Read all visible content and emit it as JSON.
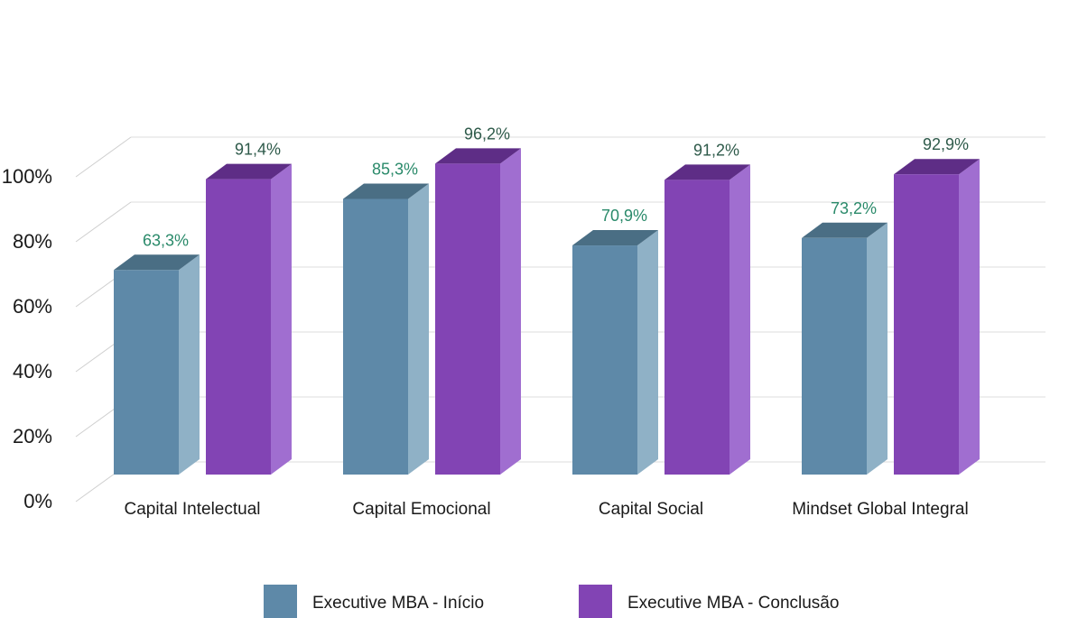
{
  "chart_data": {
    "type": "bar",
    "title": "",
    "xlabel": "",
    "ylabel": "",
    "ylim": [
      0,
      100
    ],
    "y_ticks": [
      "0%",
      "20%",
      "40%",
      "60%",
      "80%",
      "100%"
    ],
    "y_tick_values": [
      0,
      20,
      40,
      60,
      80,
      100
    ],
    "grid": true,
    "style": "3d-clustered-columns",
    "legend_position": "bottom",
    "categories": [
      "Capital Intelectual",
      "Capital Emocional",
      "Capital Social",
      "Mindset Global Integral"
    ],
    "series": [
      {
        "name": "Executive MBA - Início",
        "values": [
          63.3,
          85.3,
          70.9,
          73.2
        ],
        "labels": [
          "63,3%",
          "85,3%",
          "70,9%",
          "73,2%"
        ],
        "color": "#5e89a8",
        "side_color": "#8fb1c6",
        "top_color": "#4a6e84",
        "label_color": "#2a8a6a"
      },
      {
        "name": "Executive MBA - Conclusão",
        "values": [
          91.4,
          96.2,
          91.2,
          92.9
        ],
        "labels": [
          "91,4%",
          "96,2%",
          "91,2%",
          "92,9%"
        ],
        "color": "#8244b4",
        "side_color": "#a06ed0",
        "top_color": "#5e2d86",
        "label_color": "#2e5a4a"
      }
    ]
  }
}
